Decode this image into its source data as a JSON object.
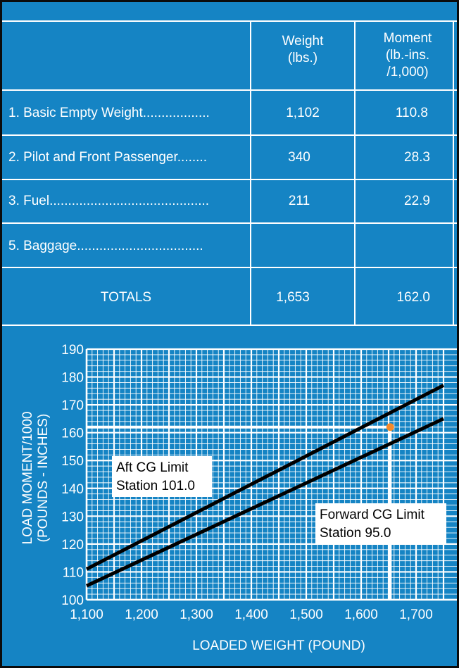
{
  "table": {
    "headers": [
      {
        "lines": [
          "Weight",
          "(lbs.)"
        ]
      },
      {
        "lines": [
          "Moment",
          "(lb.-ins.",
          "/1,000)"
        ]
      }
    ],
    "rows": [
      {
        "label": "1. Basic Empty Weight..................",
        "weight": "1,102",
        "moment": "110.8"
      },
      {
        "label": "2. Pilot and Front Passenger........",
        "weight": "340",
        "moment": "28.3"
      },
      {
        "label": "3. Fuel...........................................",
        "weight": "211",
        "moment": "22.9"
      },
      {
        "label": "5. Baggage..................................",
        "weight": "",
        "moment": ""
      }
    ],
    "totals": {
      "label": "TOTALS",
      "weight": "1,653",
      "moment": "162.0"
    }
  },
  "chart_data": {
    "type": "line",
    "xlabel": "LOADED WEIGHT (POUND)",
    "ylabel_lines": [
      "LOAD MOMENT/1000",
      "(POUNDS - INCHES)"
    ],
    "xlim": [
      1100,
      1750
    ],
    "ylim": [
      100,
      190
    ],
    "x_ticks": [
      1100,
      1200,
      1300,
      1400,
      1500,
      1600,
      1700
    ],
    "x_tick_labels": [
      "1,100",
      "1,200",
      "1,300",
      "1,400",
      "1,500",
      "1,600",
      "1,700"
    ],
    "y_ticks": [
      100,
      110,
      120,
      130,
      140,
      150,
      160,
      170,
      180,
      190
    ],
    "y_tick_labels": [
      "100",
      "110",
      "120",
      "130",
      "140",
      "150",
      "160",
      "170",
      "180",
      "190"
    ],
    "grid": true,
    "series": [
      {
        "name": "Aft CG Limit",
        "x": [
          1100,
          1750
        ],
        "y": [
          111,
          177
        ]
      },
      {
        "name": "Forward CG Limit",
        "x": [
          1100,
          1750
        ],
        "y": [
          105,
          165
        ]
      }
    ],
    "annotations": [
      {
        "lines": [
          "Aft CG Limit",
          "Station 101.0"
        ]
      },
      {
        "lines": [
          "Forward CG Limit",
          "Station 95.0"
        ]
      }
    ],
    "point": {
      "x": 1653,
      "y": 162,
      "color": "#f58a2a"
    },
    "colors": {
      "background": "#1584c4",
      "grid": "#ffffff",
      "lines": "#000000"
    }
  }
}
